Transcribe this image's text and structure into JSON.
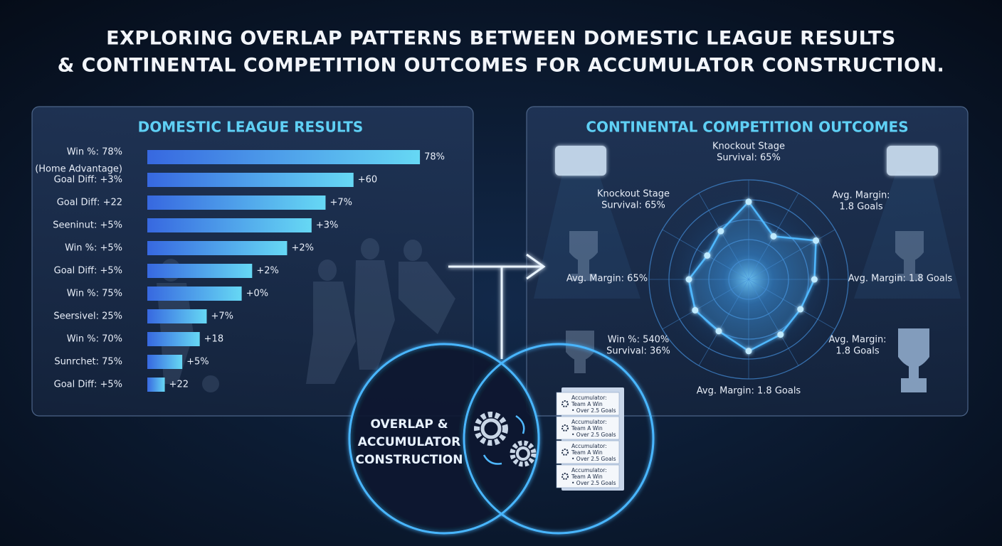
{
  "title": [
    "EXPLORING OVERLAP PATTERNS BETWEEN DOMESTIC LEAGUE RESULTS",
    "& CONTINENTAL COMPETITION OUTCOMES FOR ACCUMULATOR CONSTRUCTION."
  ],
  "chart_data": [
    {
      "type": "bar",
      "orientation": "horizontal",
      "title": "DOMESTIC LEAGUE RESULTS",
      "categories": [
        "Win %: 78%",
        "Goal Diff: +3%",
        "Goal Diff: +22",
        "Seeninut: +5%",
        "Win %: +5%",
        "Goal Diff: +5%",
        "Win %: 75%",
        "Seersivel: 25%",
        "Win %: 70%",
        "Sunrchet: 75%",
        "Goal Diff: +5%"
      ],
      "category_note": "(Home Advantage)",
      "values": [
        78,
        59,
        51,
        47,
        40,
        30,
        27,
        17,
        15,
        10,
        5
      ],
      "bar_labels": [
        "78%",
        "+60",
        "+7%",
        "+3%",
        "+2%",
        "+2%",
        "+0%",
        "+7%",
        "+18",
        "+5%",
        "+22"
      ],
      "color": [
        "#3768e0",
        "#66d8f4"
      ],
      "xlim": [
        0,
        90
      ]
    },
    {
      "type": "radar",
      "title": "CONTINENTAL COMPETITION OUTCOMES",
      "values": [
        3.9,
        2.5,
        3.9,
        3.3,
        3.0,
        3.2,
        3.6,
        3.0,
        3.1,
        3.0,
        2.4,
        2.8
      ],
      "rlim": [
        0,
        5
      ],
      "color": "#4fb8ff",
      "annotations": [
        [
          "Knockout Stage",
          "Survival: 65%"
        ],
        [
          "Avg. Margin:",
          "1.8 Goals"
        ],
        [
          "Knockout Stage",
          "Survival: 65%"
        ],
        [
          "Avg. Margin: 65%"
        ],
        [
          "Avg. Margin: 1.8 Goals"
        ],
        [
          "Win %: 540%",
          "Survival: 36%"
        ],
        [
          "Avg. Margin:",
          "1.8 Goals"
        ],
        [
          "Avg. Margin: 1.8 Goals"
        ]
      ]
    }
  ],
  "overlap": {
    "label": [
      "OVERLAP &",
      "ACCUMULATOR",
      "CONSTRUCTION"
    ],
    "cards": [
      [
        "Accumulator:",
        "Team A Win",
        "• Over 2.5 Goals"
      ],
      [
        "Accumulator:",
        "Team A Win",
        "• Over 2.5 Goals"
      ],
      [
        "Accumulator:",
        "Team A Win",
        "• Over 2.5 Goals"
      ],
      [
        "Accumulator:",
        "Team A Win",
        "• Over 2.5 Goals"
      ]
    ]
  }
}
